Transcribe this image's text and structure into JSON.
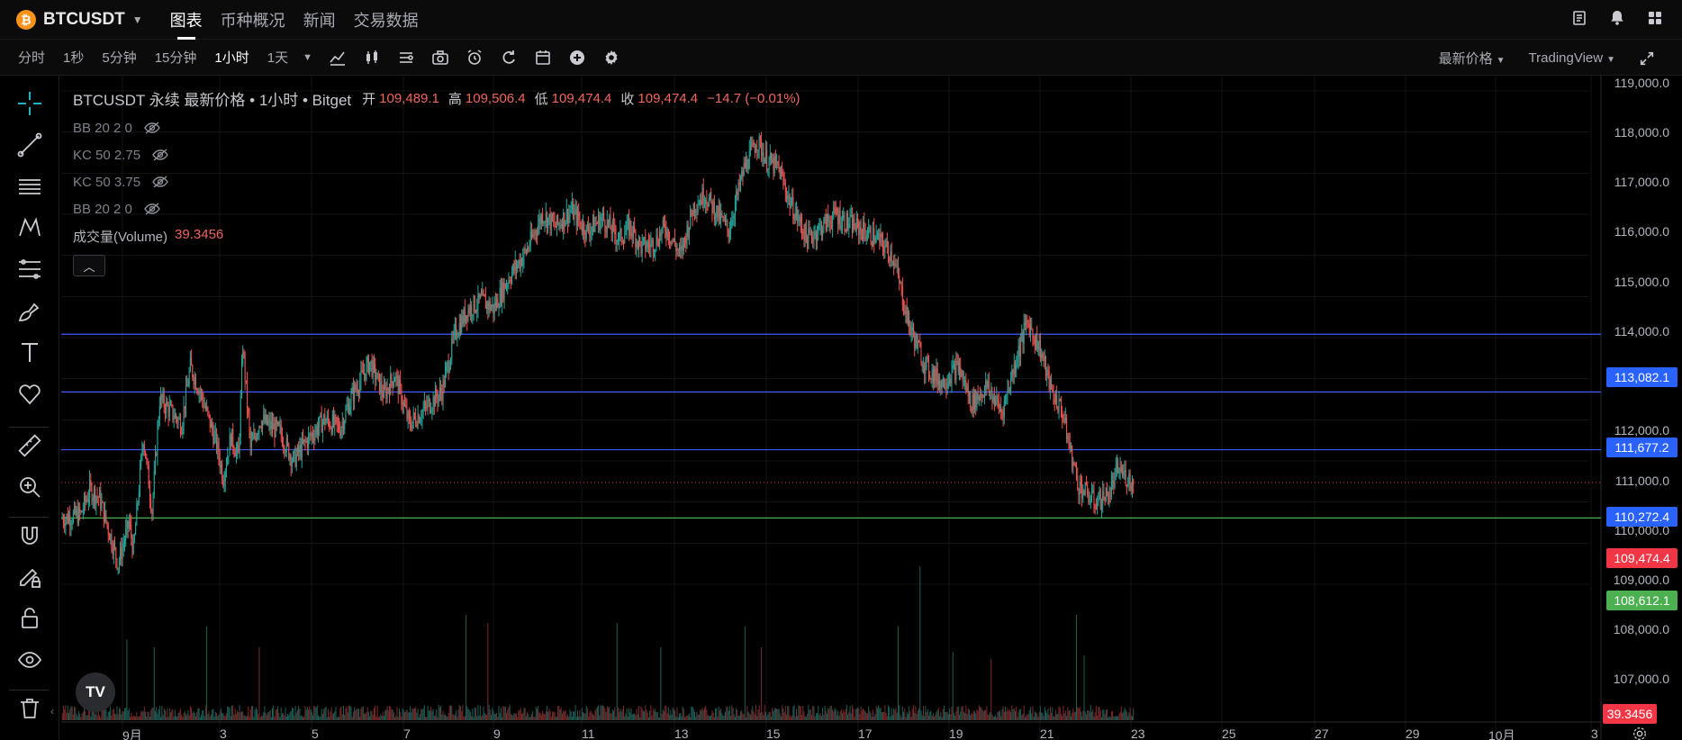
{
  "header": {
    "coin_glyph": "₿",
    "symbol": "BTCUSDT",
    "tabs": [
      {
        "label": "图表",
        "active": true
      },
      {
        "label": "币种概况",
        "active": false
      },
      {
        "label": "新闻",
        "active": false
      },
      {
        "label": "交易数据",
        "active": false
      }
    ],
    "icons": [
      "doc-icon",
      "bell-icon",
      "grid-icon"
    ]
  },
  "toolbar": {
    "intervals": [
      {
        "label": "分时",
        "active": false
      },
      {
        "label": "1秒",
        "active": false
      },
      {
        "label": "5分钟",
        "active": false
      },
      {
        "label": "15分钟",
        "active": false
      },
      {
        "label": "1小时",
        "active": true
      },
      {
        "label": "1天",
        "active": false
      }
    ],
    "price_type": "最新价格",
    "view": "TradingView"
  },
  "legend": {
    "title": "BTCUSDT 永续 最新价格 • 1小时 • Bitget",
    "open_label": "开",
    "open": "109,489.1",
    "high_label": "高",
    "high": "109,506.4",
    "low_label": "低",
    "low": "109,474.4",
    "close_label": "收",
    "close": "109,474.4",
    "change": "−14.7 (−0.01%)",
    "indicators": [
      "BB 20 2 0",
      "KC 50 2.75",
      "KC 50 3.75",
      "BB 20 2 0"
    ],
    "volume_name": "成交量(Volume)",
    "volume_value": "39.3456"
  },
  "price_axis": {
    "ticks": [
      "119,000.0",
      "118,000.0",
      "117,000.0",
      "116,000.0",
      "115,000.0",
      "114,000.0",
      "112,000.0",
      "111,000.0",
      "110,000.0",
      "109,000.0",
      "108,000.0",
      "107,000.0"
    ]
  },
  "badges": {
    "line1": "113,082.1",
    "line2": "111,677.2",
    "line3": "110,272.4",
    "current": "109,474.4",
    "green": "108,612.1",
    "volume": "39.3456"
  },
  "date_axis": {
    "labels": [
      "9月",
      "3",
      "5",
      "7",
      "9",
      "11",
      "13",
      "15",
      "17",
      "19",
      "21",
      "23",
      "25",
      "27",
      "29",
      "10月",
      "3"
    ]
  },
  "colors": {
    "up": "#26a69a",
    "down": "#ef5350",
    "blue_line": "#3d5afe",
    "badge_blue": "#2962ff",
    "badge_red": "#f23645",
    "badge_green": "#4caf50"
  },
  "chart_data": {
    "type": "candlestick",
    "ylim": [
      106600,
      119200
    ],
    "horizontal_lines": [
      113082.1,
      111677.2,
      110272.4,
      108612.1
    ],
    "last_price": 109474.4,
    "close_path": [
      [
        0,
        108600
      ],
      [
        18,
        108700
      ],
      [
        26,
        109300
      ],
      [
        35,
        109100
      ],
      [
        52,
        107500
      ],
      [
        62,
        108500
      ],
      [
        66,
        107800
      ],
      [
        75,
        110600
      ],
      [
        83,
        108800
      ],
      [
        90,
        111500
      ],
      [
        110,
        110900
      ],
      [
        118,
        112300
      ],
      [
        128,
        111600
      ],
      [
        142,
        110400
      ],
      [
        148,
        109600
      ],
      [
        155,
        110600
      ],
      [
        162,
        110100
      ],
      [
        166,
        112800
      ],
      [
        173,
        110300
      ],
      [
        182,
        111000
      ],
      [
        200,
        110700
      ],
      [
        212,
        110000
      ],
      [
        222,
        110400
      ],
      [
        240,
        111000
      ],
      [
        255,
        110800
      ],
      [
        266,
        111600
      ],
      [
        282,
        112400
      ],
      [
        295,
        111600
      ],
      [
        305,
        112100
      ],
      [
        318,
        110900
      ],
      [
        330,
        111200
      ],
      [
        348,
        111700
      ],
      [
        360,
        113100
      ],
      [
        372,
        113700
      ],
      [
        385,
        113900
      ],
      [
        395,
        113700
      ],
      [
        410,
        114500
      ],
      [
        425,
        115100
      ],
      [
        440,
        116000
      ],
      [
        452,
        115700
      ],
      [
        466,
        116100
      ],
      [
        480,
        115600
      ],
      [
        495,
        115900
      ],
      [
        510,
        115400
      ],
      [
        520,
        115700
      ],
      [
        530,
        115200
      ],
      [
        542,
        115300
      ],
      [
        552,
        115700
      ],
      [
        566,
        115000
      ],
      [
        578,
        116200
      ],
      [
        588,
        116500
      ],
      [
        600,
        116000
      ],
      [
        610,
        115600
      ],
      [
        624,
        117100
      ],
      [
        636,
        117800
      ],
      [
        645,
        117300
      ],
      [
        656,
        117100
      ],
      [
        666,
        116300
      ],
      [
        682,
        115400
      ],
      [
        695,
        115700
      ],
      [
        708,
        116000
      ],
      [
        718,
        115800
      ],
      [
        733,
        115600
      ],
      [
        746,
        115400
      ],
      [
        760,
        115000
      ],
      [
        775,
        113300
      ],
      [
        790,
        112300
      ],
      [
        805,
        111900
      ],
      [
        820,
        112300
      ],
      [
        832,
        111400
      ],
      [
        846,
        111800
      ],
      [
        860,
        111200
      ],
      [
        872,
        112400
      ],
      [
        883,
        113400
      ],
      [
        895,
        112700
      ],
      [
        905,
        111700
      ],
      [
        915,
        111200
      ],
      [
        922,
        110300
      ],
      [
        930,
        109400
      ],
      [
        945,
        109000
      ],
      [
        958,
        109200
      ],
      [
        966,
        109800
      ],
      [
        980,
        109470
      ]
    ],
    "volume_spikes": [
      [
        60,
        50
      ],
      [
        85,
        45
      ],
      [
        133,
        58
      ],
      [
        181,
        45
      ],
      [
        370,
        65
      ],
      [
        390,
        60
      ],
      [
        508,
        60
      ],
      [
        548,
        45
      ],
      [
        625,
        58
      ],
      [
        640,
        45
      ],
      [
        765,
        58
      ],
      [
        785,
        95
      ],
      [
        815,
        42
      ],
      [
        850,
        38
      ],
      [
        928,
        65
      ],
      [
        935,
        40
      ]
    ]
  }
}
